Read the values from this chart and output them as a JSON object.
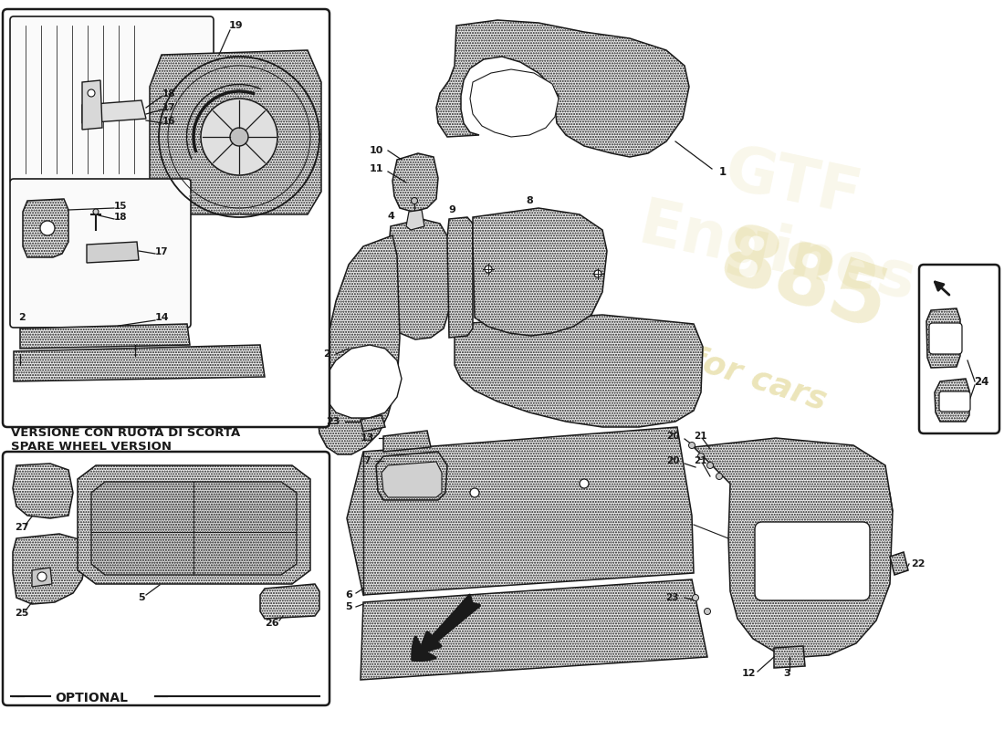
{
  "bg_color": "#ffffff",
  "line_color": "#1a1a1a",
  "stipple_color": "#e8e8e8",
  "watermark_color": "#c8b438",
  "figsize": [
    11.0,
    8.0
  ],
  "dpi": 100,
  "spare_wheel_label_line1": "VERSIONE CON RUOTA DI SCORTA",
  "spare_wheel_label_line2": "SPARE WHEEL VERSION",
  "optional_label": "OPTIONAL"
}
